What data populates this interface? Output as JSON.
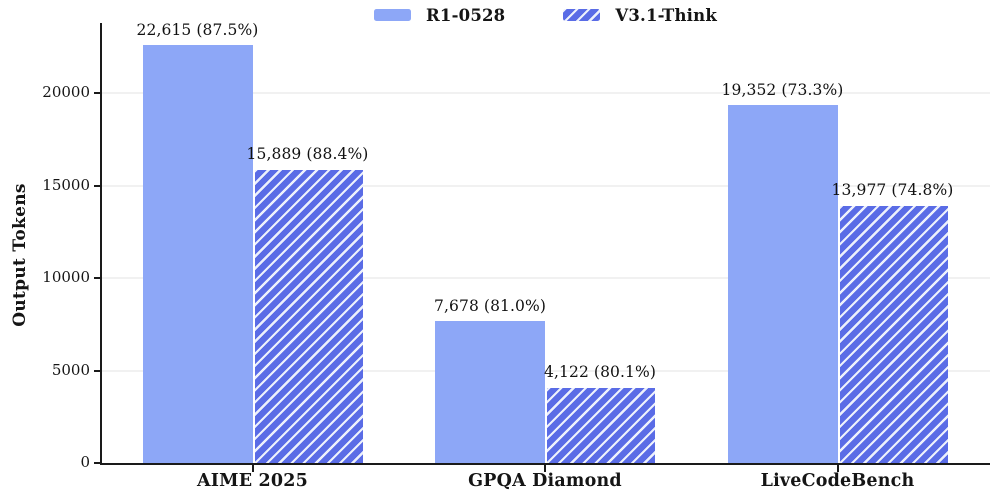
{
  "chart_data": {
    "type": "bar",
    "title": "",
    "xlabel": "",
    "ylabel": "Output Tokens",
    "categories": [
      "AIME 2025",
      "GPQA Diamond",
      "LiveCodeBench"
    ],
    "series": [
      {
        "name": "R1-0528",
        "values": [
          22615,
          7678,
          19352
        ],
        "data_labels": [
          "22,615 (87.5%)",
          "7,678 (81.0%)",
          "19,352 (73.3%)"
        ],
        "color": "#8da7f7",
        "pattern": "solid"
      },
      {
        "name": "V3.1-Think",
        "values": [
          15889,
          4122,
          13977
        ],
        "data_labels": [
          "15,889 (88.4%)",
          "4,122 (80.1%)",
          "13,977 (74.8%)"
        ],
        "color": "#5a6ce6",
        "pattern": "diagonal-hatch",
        "hatch_color": "#edf1fc"
      }
    ],
    "ytick_labels": [
      "0",
      "5000",
      "10000",
      "15000",
      "20000"
    ],
    "yticks": [
      0,
      5000,
      10000,
      15000,
      20000
    ],
    "ylim": [
      0,
      23800
    ],
    "grid": "horizontal",
    "legend_position": "top-center",
    "axis_color": "#1a1a1a",
    "gridline_color": "#f1f1f1"
  }
}
